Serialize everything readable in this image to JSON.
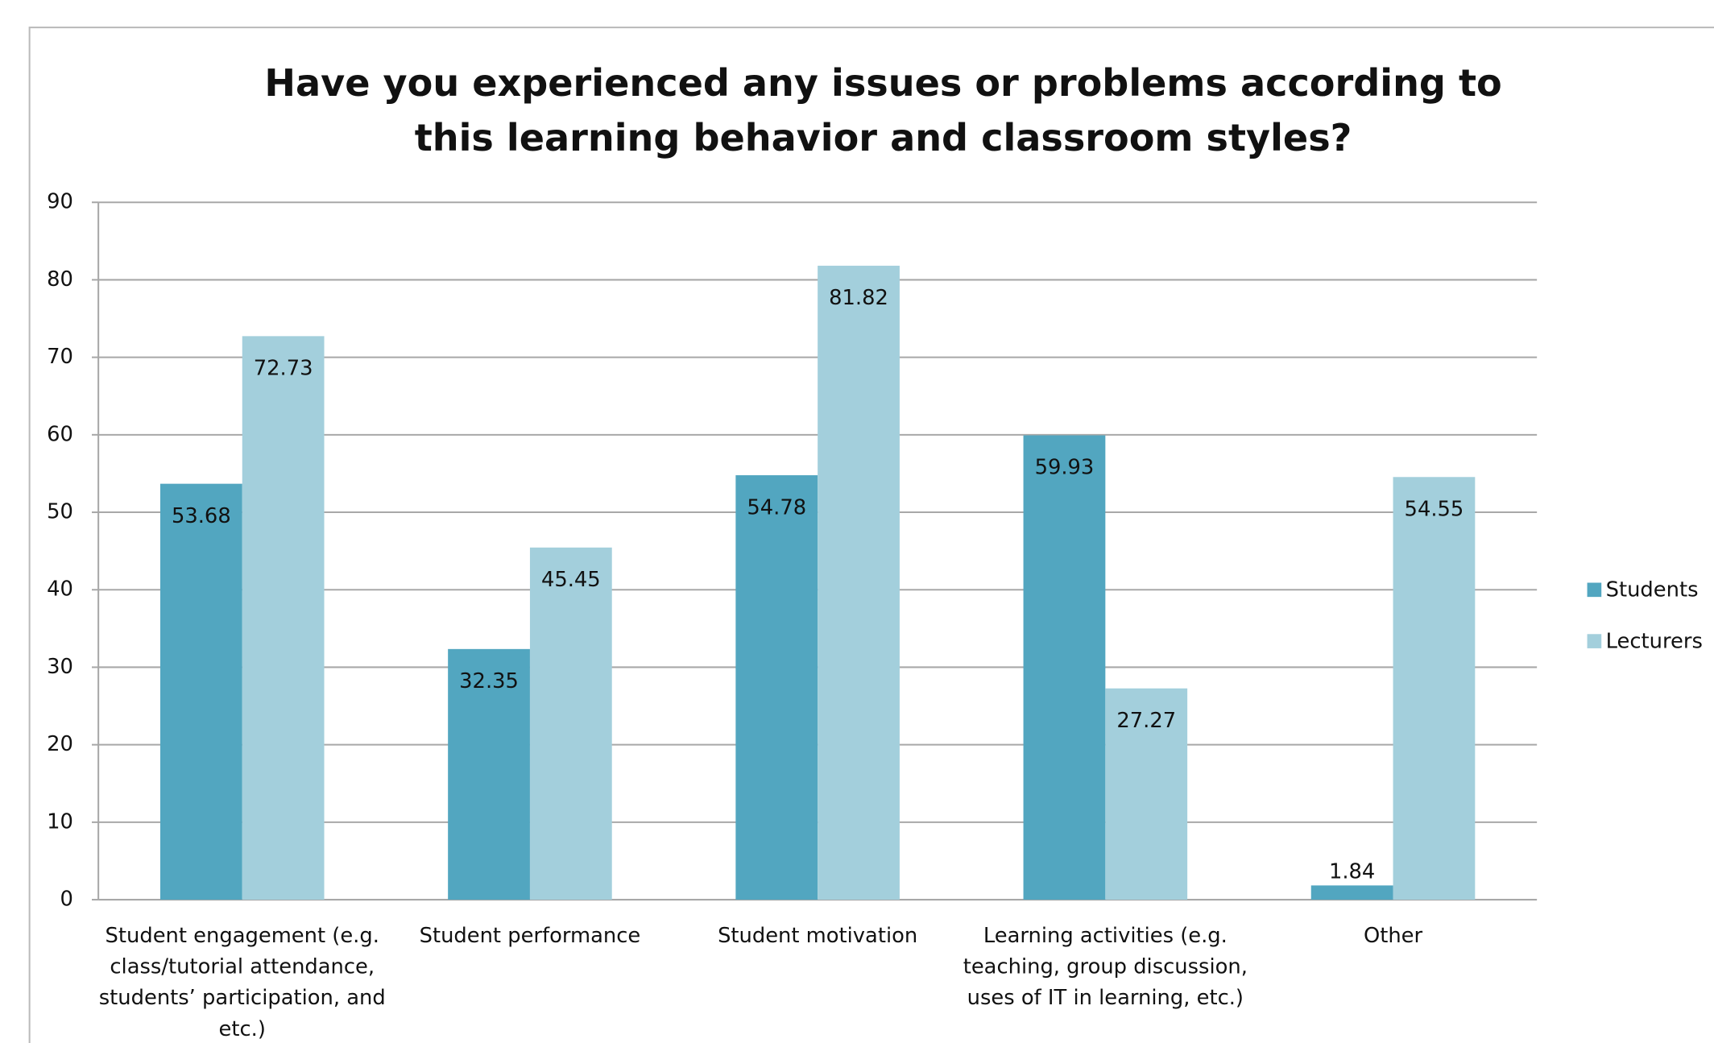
{
  "chart_data": {
    "type": "bar",
    "title": "Have you experienced any issues or problems according to this learning behavior and classroom styles?",
    "categories": [
      "Student engagement (e.g. class/tutorial attendance, students’ participation, and etc.)",
      "Student performance",
      "Student motivation",
      "Learning activities (e.g. teaching, group discussion, uses of IT in learning, etc.)",
      "Other"
    ],
    "series": [
      {
        "name": "Students",
        "color": "#52a6c0",
        "values": [
          53.68,
          32.35,
          54.78,
          59.93,
          1.84
        ]
      },
      {
        "name": "Lecturers",
        "color": "#a3cfdc",
        "values": [
          72.73,
          45.45,
          81.82,
          27.27,
          54.55
        ]
      }
    ],
    "ylim": [
      0,
      90
    ],
    "yticks": [
      0,
      10,
      20,
      30,
      40,
      50,
      60,
      70,
      80,
      90
    ],
    "grid": true,
    "legend": "right"
  }
}
